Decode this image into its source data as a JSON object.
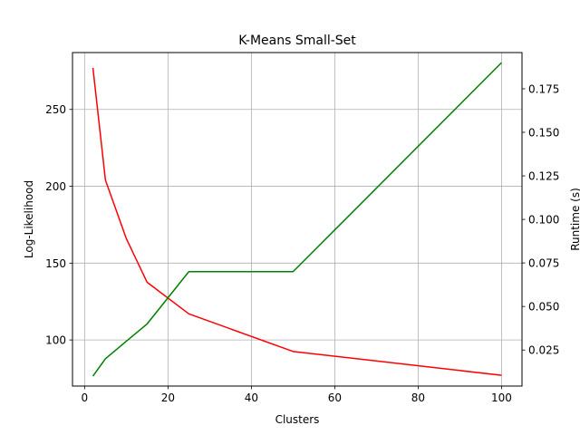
{
  "chart_data": {
    "type": "line",
    "title": "K-Means Small-Set",
    "xlabel": "Clusters",
    "ylabel": "Log-Likelihood",
    "y2label": "Runtime (s)",
    "xlim": [
      -2.9,
      104.9
    ],
    "ylim": [
      70.0,
      287.0
    ],
    "y2lim": [
      0.0043,
      0.1958
    ],
    "x_ticks": [
      0,
      20,
      40,
      60,
      80,
      100
    ],
    "y_ticks": [
      100,
      150,
      200,
      250
    ],
    "y2_ticks": [
      0.025,
      0.05,
      0.075,
      0.1,
      0.125,
      0.15,
      0.175
    ],
    "y2_tick_labels": [
      "0.025",
      "0.050",
      "0.075",
      "0.100",
      "0.125",
      "0.150",
      "0.175"
    ],
    "grid": true,
    "series": [
      {
        "axis": "left",
        "color": "#ff0000",
        "x": [
          2,
          5,
          10,
          15,
          25,
          50,
          100
        ],
        "values": [
          277,
          204,
          166,
          137.5,
          117,
          92.5,
          77
        ]
      },
      {
        "axis": "right",
        "color": "#008000",
        "x": [
          2,
          5,
          10,
          15,
          25,
          50,
          100
        ],
        "values": [
          0.01,
          0.02,
          0.03,
          0.04,
          0.07,
          0.07,
          0.19
        ]
      }
    ]
  }
}
